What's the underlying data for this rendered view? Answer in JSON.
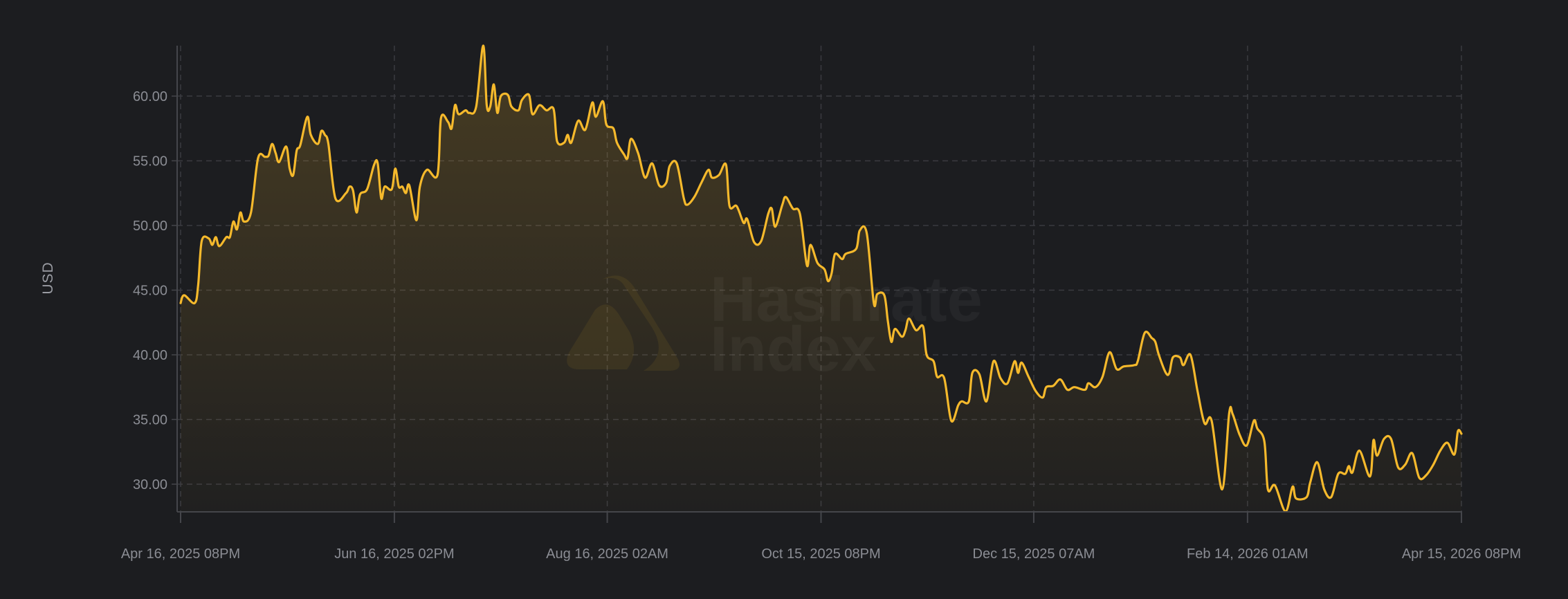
{
  "chart_data": {
    "type": "area",
    "title": "",
    "xlabel": "",
    "ylabel": "USD",
    "watermark": "Hashrate Index",
    "ylim": [
      27.86,
      63.9
    ],
    "xlim": [
      "2025-04-16T20:00",
      "2026-04-15T20:00"
    ],
    "grid": true,
    "y_ticks": [
      "30.00",
      "35.00",
      "40.00",
      "45.00",
      "50.00",
      "55.00",
      "60.00"
    ],
    "x_ticks": [
      {
        "date": "2025-04-16T20:00",
        "label": "Apr 16, 2025 08PM"
      },
      {
        "date": "2025-06-16T14:00",
        "label": "Jun 16, 2025 02PM"
      },
      {
        "date": "2025-08-16T02:00",
        "label": "Aug 16, 2025 02AM"
      },
      {
        "date": "2025-10-15T20:00",
        "label": "Oct 15, 2025 08PM"
      },
      {
        "date": "2025-12-15T07:00",
        "label": "Dec 15, 2025 07AM"
      },
      {
        "date": "2026-02-14T01:00",
        "label": "Feb 14, 2026 01AM"
      },
      {
        "date": "2026-04-15T20:00",
        "label": "Apr 15, 2026 08PM"
      }
    ],
    "colors": {
      "background": "#1c1d20",
      "line": "#f5b92c",
      "grid": "#3a3b40",
      "axis": "#45464b",
      "tick_text": "#8b8d94"
    },
    "points": [
      [
        "2025-04-16",
        44.0
      ],
      [
        "2025-04-17",
        44.6
      ],
      [
        "2025-04-20",
        44.0
      ],
      [
        "2025-04-21",
        45.4
      ],
      [
        "2025-04-22",
        48.8
      ],
      [
        "2025-04-24",
        49.0
      ],
      [
        "2025-04-25",
        48.5
      ],
      [
        "2025-04-26",
        49.1
      ],
      [
        "2025-04-27",
        48.4
      ],
      [
        "2025-04-29",
        49.1
      ],
      [
        "2025-04-30",
        49.1
      ],
      [
        "2025-05-01",
        50.3
      ],
      [
        "2025-05-02",
        49.7
      ],
      [
        "2025-05-03",
        51.0
      ],
      [
        "2025-05-04",
        50.3
      ],
      [
        "2025-05-06",
        51.0
      ],
      [
        "2025-05-08",
        55.2
      ],
      [
        "2025-05-10",
        55.3
      ],
      [
        "2025-05-11",
        55.4
      ],
      [
        "2025-05-12",
        56.3
      ],
      [
        "2025-05-13",
        55.6
      ],
      [
        "2025-05-14",
        54.9
      ],
      [
        "2025-05-16",
        56.1
      ],
      [
        "2025-05-17",
        54.4
      ],
      [
        "2025-05-18",
        53.9
      ],
      [
        "2025-05-19",
        55.8
      ],
      [
        "2025-05-20",
        56.2
      ],
      [
        "2025-05-22",
        58.4
      ],
      [
        "2025-05-23",
        57.0
      ],
      [
        "2025-05-25",
        56.3
      ],
      [
        "2025-05-26",
        57.3
      ],
      [
        "2025-05-27",
        57.0
      ],
      [
        "2025-05-28",
        56.3
      ],
      [
        "2025-05-30",
        52.1
      ],
      [
        "2025-06-02",
        52.5
      ],
      [
        "2025-06-03",
        53.0
      ],
      [
        "2025-06-04",
        52.7
      ],
      [
        "2025-06-05",
        51.0
      ],
      [
        "2025-06-06",
        52.4
      ],
      [
        "2025-06-08",
        52.8
      ],
      [
        "2025-06-10",
        54.7
      ],
      [
        "2025-06-11",
        54.8
      ],
      [
        "2025-06-12",
        52.1
      ],
      [
        "2025-06-13",
        53.0
      ],
      [
        "2025-06-15",
        52.8
      ],
      [
        "2025-06-16",
        54.4
      ],
      [
        "2025-06-17",
        53.0
      ],
      [
        "2025-06-18",
        53.0
      ],
      [
        "2025-06-19",
        52.5
      ],
      [
        "2025-06-20",
        53.1
      ],
      [
        "2025-06-22",
        50.4
      ],
      [
        "2025-06-23",
        53.0
      ],
      [
        "2025-06-25",
        54.3
      ],
      [
        "2025-06-28",
        53.9
      ],
      [
        "2025-06-29",
        58.3
      ],
      [
        "2025-07-01",
        58.0
      ],
      [
        "2025-07-02",
        57.5
      ],
      [
        "2025-07-03",
        59.3
      ],
      [
        "2025-07-04",
        58.6
      ],
      [
        "2025-07-06",
        58.9
      ],
      [
        "2025-07-07",
        58.7
      ],
      [
        "2025-07-09",
        59.2
      ],
      [
        "2025-07-11",
        63.9
      ],
      [
        "2025-07-12",
        59.3
      ],
      [
        "2025-07-13",
        59.2
      ],
      [
        "2025-07-14",
        60.9
      ],
      [
        "2025-07-15",
        58.7
      ],
      [
        "2025-07-16",
        60.0
      ],
      [
        "2025-07-18",
        60.1
      ],
      [
        "2025-07-19",
        59.2
      ],
      [
        "2025-07-21",
        58.9
      ],
      [
        "2025-07-22",
        59.7
      ],
      [
        "2025-07-24",
        60.1
      ],
      [
        "2025-07-25",
        58.6
      ],
      [
        "2025-07-27",
        59.3
      ],
      [
        "2025-07-29",
        58.9
      ],
      [
        "2025-07-31",
        59.0
      ],
      [
        "2025-08-01",
        56.5
      ],
      [
        "2025-08-03",
        56.4
      ],
      [
        "2025-08-04",
        57.0
      ],
      [
        "2025-08-05",
        56.4
      ],
      [
        "2025-08-07",
        58.1
      ],
      [
        "2025-08-09",
        57.4
      ],
      [
        "2025-08-11",
        59.5
      ],
      [
        "2025-08-12",
        58.4
      ],
      [
        "2025-08-14",
        59.6
      ],
      [
        "2025-08-15",
        57.8
      ],
      [
        "2025-08-17",
        57.5
      ],
      [
        "2025-08-18",
        56.4
      ],
      [
        "2025-08-20",
        55.5
      ],
      [
        "2025-08-21",
        55.2
      ],
      [
        "2025-08-22",
        56.7
      ],
      [
        "2025-08-24",
        55.6
      ],
      [
        "2025-08-26",
        53.7
      ],
      [
        "2025-08-28",
        54.8
      ],
      [
        "2025-08-30",
        53.1
      ],
      [
        "2025-09-01",
        53.3
      ],
      [
        "2025-09-02",
        54.6
      ],
      [
        "2025-09-04",
        54.8
      ],
      [
        "2025-09-06",
        52.1
      ],
      [
        "2025-09-07",
        51.6
      ],
      [
        "2025-09-09",
        52.2
      ],
      [
        "2025-09-11",
        53.3
      ],
      [
        "2025-09-13",
        54.3
      ],
      [
        "2025-09-14",
        53.7
      ],
      [
        "2025-09-16",
        53.9
      ],
      [
        "2025-09-18",
        54.7
      ],
      [
        "2025-09-19",
        51.5
      ],
      [
        "2025-09-21",
        51.5
      ],
      [
        "2025-09-23",
        50.2
      ],
      [
        "2025-09-24",
        50.5
      ],
      [
        "2025-09-26",
        48.7
      ],
      [
        "2025-09-28",
        48.8
      ],
      [
        "2025-09-30",
        50.9
      ],
      [
        "2025-10-01",
        51.3
      ],
      [
        "2025-10-02",
        49.9
      ],
      [
        "2025-10-04",
        51.6
      ],
      [
        "2025-10-05",
        52.2
      ],
      [
        "2025-10-07",
        51.3
      ],
      [
        "2025-10-09",
        50.9
      ],
      [
        "2025-10-11",
        46.9
      ],
      [
        "2025-10-12",
        48.5
      ],
      [
        "2025-10-14",
        47.1
      ],
      [
        "2025-10-16",
        46.6
      ],
      [
        "2025-10-17",
        45.7
      ],
      [
        "2025-10-18",
        46.3
      ],
      [
        "2025-10-19",
        47.8
      ],
      [
        "2025-10-21",
        47.4
      ],
      [
        "2025-10-22",
        47.8
      ],
      [
        "2025-10-25",
        48.2
      ],
      [
        "2025-10-26",
        49.6
      ],
      [
        "2025-10-28",
        49.4
      ],
      [
        "2025-10-30",
        44.0
      ],
      [
        "2025-10-31",
        44.7
      ],
      [
        "2025-11-02",
        44.6
      ],
      [
        "2025-11-03",
        42.6
      ],
      [
        "2025-11-04",
        41.0
      ],
      [
        "2025-11-05",
        42.0
      ],
      [
        "2025-11-07",
        41.4
      ],
      [
        "2025-11-08",
        41.9
      ],
      [
        "2025-11-09",
        42.8
      ],
      [
        "2025-11-11",
        41.9
      ],
      [
        "2025-11-13",
        42.2
      ],
      [
        "2025-11-14",
        40.0
      ],
      [
        "2025-11-16",
        39.5
      ],
      [
        "2025-11-17",
        38.3
      ],
      [
        "2025-11-19",
        38.2
      ],
      [
        "2025-11-21",
        34.9
      ],
      [
        "2025-11-23",
        36.1
      ],
      [
        "2025-11-24",
        36.4
      ],
      [
        "2025-11-26",
        36.4
      ],
      [
        "2025-11-27",
        38.6
      ],
      [
        "2025-11-29",
        38.5
      ],
      [
        "2025-12-01",
        36.4
      ],
      [
        "2025-12-03",
        39.5
      ],
      [
        "2025-12-05",
        38.2
      ],
      [
        "2025-12-07",
        37.8
      ],
      [
        "2025-12-09",
        39.5
      ],
      [
        "2025-12-10",
        38.6
      ],
      [
        "2025-12-11",
        39.4
      ],
      [
        "2025-12-13",
        38.3
      ],
      [
        "2025-12-15",
        37.2
      ],
      [
        "2025-12-17",
        36.7
      ],
      [
        "2025-12-18",
        37.5
      ],
      [
        "2025-12-20",
        37.6
      ],
      [
        "2025-12-22",
        38.1
      ],
      [
        "2025-12-24",
        37.3
      ],
      [
        "2025-12-26",
        37.5
      ],
      [
        "2025-12-29",
        37.3
      ],
      [
        "2025-12-30",
        37.8
      ],
      [
        "2026-01-01",
        37.5
      ],
      [
        "2026-01-03",
        38.3
      ],
      [
        "2026-01-05",
        40.2
      ],
      [
        "2026-01-07",
        38.9
      ],
      [
        "2026-01-09",
        39.1
      ],
      [
        "2026-01-12",
        39.2
      ],
      [
        "2026-01-13",
        39.5
      ],
      [
        "2026-01-15",
        41.7
      ],
      [
        "2026-01-17",
        41.3
      ],
      [
        "2026-01-18",
        41.0
      ],
      [
        "2026-01-19",
        40.0
      ],
      [
        "2026-01-21",
        38.6
      ],
      [
        "2026-01-22",
        38.6
      ],
      [
        "2026-01-23",
        39.8
      ],
      [
        "2026-01-25",
        39.8
      ],
      [
        "2026-01-26",
        39.2
      ],
      [
        "2026-01-28",
        40.0
      ],
      [
        "2026-01-30",
        37.2
      ],
      [
        "2026-02-01",
        34.7
      ],
      [
        "2026-02-03",
        34.9
      ],
      [
        "2026-02-06",
        29.6
      ],
      [
        "2026-02-08",
        35.5
      ],
      [
        "2026-02-09",
        35.4
      ],
      [
        "2026-02-11",
        33.8
      ],
      [
        "2026-02-13",
        33.0
      ],
      [
        "2026-02-15",
        34.9
      ],
      [
        "2026-02-16",
        34.3
      ],
      [
        "2026-02-18",
        33.3
      ],
      [
        "2026-02-19",
        29.6
      ],
      [
        "2026-02-21",
        29.9
      ],
      [
        "2026-02-24",
        27.9
      ],
      [
        "2026-02-26",
        29.8
      ],
      [
        "2026-02-27",
        28.9
      ],
      [
        "2026-03-02",
        29.0
      ],
      [
        "2026-03-03",
        30.1
      ],
      [
        "2026-03-05",
        31.7
      ],
      [
        "2026-03-07",
        29.6
      ],
      [
        "2026-03-09",
        29.0
      ],
      [
        "2026-03-11",
        30.8
      ],
      [
        "2026-03-13",
        30.8
      ],
      [
        "2026-03-14",
        31.4
      ],
      [
        "2026-03-15",
        30.9
      ],
      [
        "2026-03-17",
        32.6
      ],
      [
        "2026-03-20",
        30.6
      ],
      [
        "2026-03-21",
        33.4
      ],
      [
        "2026-03-22",
        32.2
      ],
      [
        "2026-03-24",
        33.5
      ],
      [
        "2026-03-26",
        33.5
      ],
      [
        "2026-03-28",
        31.3
      ],
      [
        "2026-03-30",
        31.5
      ],
      [
        "2026-04-01",
        32.4
      ],
      [
        "2026-04-03",
        30.5
      ],
      [
        "2026-04-05",
        30.7
      ],
      [
        "2026-04-07",
        31.5
      ],
      [
        "2026-04-09",
        32.6
      ],
      [
        "2026-04-11",
        33.2
      ],
      [
        "2026-04-13",
        32.3
      ],
      [
        "2026-04-14",
        34.1
      ],
      [
        "2026-04-15",
        33.9
      ]
    ]
  }
}
